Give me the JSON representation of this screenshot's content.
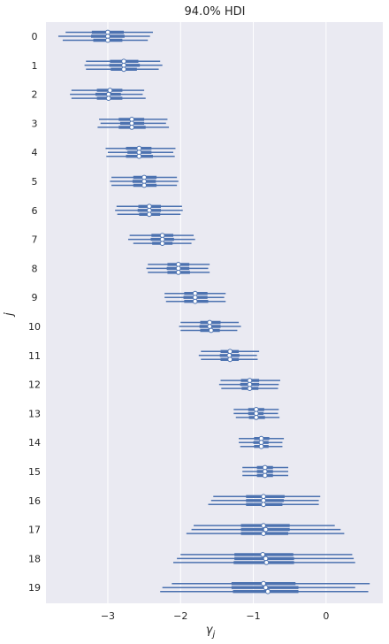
{
  "chart_data": {
    "type": "forest",
    "title": "94.0% HDI",
    "xlabel": "γ_j",
    "xlabel_main": "γ",
    "xlabel_sub": "j",
    "ylabel": "j",
    "xlim": [
      -3.85,
      0.78
    ],
    "x_ticks": [
      -3,
      -2,
      -1,
      0
    ],
    "x_tick_labels": [
      "−3",
      "−2",
      "−1",
      "0"
    ],
    "grid": true,
    "background_color": "#eaeaf2",
    "line_color": "#4c72b0",
    "groups": [
      {
        "label": "0",
        "chains": [
          {
            "hdi": [
              -3.58,
              -2.38
            ],
            "iqr": [
              -3.22,
              -2.78
            ],
            "median": -3.0
          },
          {
            "hdi": [
              -3.68,
              -2.42
            ],
            "iqr": [
              -3.23,
              -2.77
            ],
            "median": -3.0
          },
          {
            "hdi": [
              -3.62,
              -2.45
            ],
            "iqr": [
              -3.2,
              -2.8
            ],
            "median": -3.0
          }
        ]
      },
      {
        "label": "1",
        "chains": [
          {
            "hdi": [
              -3.3,
              -2.28
            ],
            "iqr": [
              -2.97,
              -2.58
            ],
            "median": -2.78
          },
          {
            "hdi": [
              -3.32,
              -2.25
            ],
            "iqr": [
              -2.98,
              -2.56
            ],
            "median": -2.78
          },
          {
            "hdi": [
              -3.3,
              -2.3
            ],
            "iqr": [
              -2.96,
              -2.6
            ],
            "median": -2.78
          }
        ]
      },
      {
        "label": "2",
        "chains": [
          {
            "hdi": [
              -3.5,
              -2.5
            ],
            "iqr": [
              -3.15,
              -2.8
            ],
            "median": -2.97
          },
          {
            "hdi": [
              -3.52,
              -2.52
            ],
            "iqr": [
              -3.17,
              -2.82
            ],
            "median": -2.99
          },
          {
            "hdi": [
              -3.5,
              -2.48
            ],
            "iqr": [
              -3.15,
              -2.8
            ],
            "median": -2.99
          }
        ]
      },
      {
        "label": "3",
        "chains": [
          {
            "hdi": [
              -3.12,
              -2.18
            ],
            "iqr": [
              -2.85,
              -2.5
            ],
            "median": -2.67
          },
          {
            "hdi": [
              -3.1,
              -2.2
            ],
            "iqr": [
              -2.83,
              -2.5
            ],
            "median": -2.67
          },
          {
            "hdi": [
              -3.14,
              -2.16
            ],
            "iqr": [
              -2.85,
              -2.48
            ],
            "median": -2.67
          }
        ]
      },
      {
        "label": "4",
        "chains": [
          {
            "hdi": [
              -3.03,
              -2.07
            ],
            "iqr": [
              -2.75,
              -2.4
            ],
            "median": -2.57
          },
          {
            "hdi": [
              -3.0,
              -2.1
            ],
            "iqr": [
              -2.73,
              -2.4
            ],
            "median": -2.57
          },
          {
            "hdi": [
              -3.02,
              -2.08
            ],
            "iqr": [
              -2.75,
              -2.38
            ],
            "median": -2.57
          }
        ]
      },
      {
        "label": "5",
        "chains": [
          {
            "hdi": [
              -2.95,
              -2.05
            ],
            "iqr": [
              -2.65,
              -2.33
            ],
            "median": -2.5
          },
          {
            "hdi": [
              -2.97,
              -2.03
            ],
            "iqr": [
              -2.66,
              -2.34
            ],
            "median": -2.5
          },
          {
            "hdi": [
              -2.95,
              -2.05
            ],
            "iqr": [
              -2.65,
              -2.33
            ],
            "median": -2.5
          }
        ]
      },
      {
        "label": "6",
        "chains": [
          {
            "hdi": [
              -2.88,
              -1.98
            ],
            "iqr": [
              -2.58,
              -2.27
            ],
            "median": -2.43
          },
          {
            "hdi": [
              -2.9,
              -1.97
            ],
            "iqr": [
              -2.59,
              -2.27
            ],
            "median": -2.43
          },
          {
            "hdi": [
              -2.87,
              -2.0
            ],
            "iqr": [
              -2.57,
              -2.28
            ],
            "median": -2.43
          }
        ]
      },
      {
        "label": "7",
        "chains": [
          {
            "hdi": [
              -2.7,
              -1.82
            ],
            "iqr": [
              -2.4,
              -2.1
            ],
            "median": -2.25
          },
          {
            "hdi": [
              -2.72,
              -1.8
            ],
            "iqr": [
              -2.41,
              -2.09
            ],
            "median": -2.25
          },
          {
            "hdi": [
              -2.65,
              -1.85
            ],
            "iqr": [
              -2.39,
              -2.11
            ],
            "median": -2.25
          }
        ]
      },
      {
        "label": "8",
        "chains": [
          {
            "hdi": [
              -2.45,
              -1.6
            ],
            "iqr": [
              -2.18,
              -1.88
            ],
            "median": -2.03
          },
          {
            "hdi": [
              -2.47,
              -1.62
            ],
            "iqr": [
              -2.19,
              -1.88
            ],
            "median": -2.03
          },
          {
            "hdi": [
              -2.45,
              -1.6
            ],
            "iqr": [
              -2.18,
              -1.87
            ],
            "median": -2.03
          }
        ]
      },
      {
        "label": "9",
        "chains": [
          {
            "hdi": [
              -2.22,
              -1.38
            ],
            "iqr": [
              -1.95,
              -1.63
            ],
            "median": -1.8
          },
          {
            "hdi": [
              -2.22,
              -1.4
            ],
            "iqr": [
              -1.96,
              -1.63
            ],
            "median": -1.8
          },
          {
            "hdi": [
              -2.2,
              -1.38
            ],
            "iqr": [
              -1.95,
              -1.62
            ],
            "median": -1.8
          }
        ]
      },
      {
        "label": "10",
        "chains": [
          {
            "hdi": [
              -2.0,
              -1.2
            ],
            "iqr": [
              -1.73,
              -1.45
            ],
            "median": -1.6
          },
          {
            "hdi": [
              -2.02,
              -1.17
            ],
            "iqr": [
              -1.74,
              -1.45
            ],
            "median": -1.6
          },
          {
            "hdi": [
              -2.0,
              -1.22
            ],
            "iqr": [
              -1.73,
              -1.46
            ],
            "median": -1.58
          }
        ]
      },
      {
        "label": "11",
        "chains": [
          {
            "hdi": [
              -1.72,
              -0.92
            ],
            "iqr": [
              -1.45,
              -1.2
            ],
            "median": -1.32
          },
          {
            "hdi": [
              -1.75,
              -0.95
            ],
            "iqr": [
              -1.46,
              -1.19
            ],
            "median": -1.33
          },
          {
            "hdi": [
              -1.72,
              -0.94
            ],
            "iqr": [
              -1.45,
              -1.2
            ],
            "median": -1.32
          }
        ]
      },
      {
        "label": "12",
        "chains": [
          {
            "hdi": [
              -1.45,
              -0.63
            ],
            "iqr": [
              -1.17,
              -0.92
            ],
            "median": -1.05
          },
          {
            "hdi": [
              -1.47,
              -0.65
            ],
            "iqr": [
              -1.18,
              -0.92
            ],
            "median": -1.05
          },
          {
            "hdi": [
              -1.44,
              -0.66
            ],
            "iqr": [
              -1.16,
              -0.93
            ],
            "median": -1.05
          }
        ]
      },
      {
        "label": "13",
        "chains": [
          {
            "hdi": [
              -1.27,
              -0.65
            ],
            "iqr": [
              -1.07,
              -0.85
            ],
            "median": -0.96
          },
          {
            "hdi": [
              -1.27,
              -0.66
            ],
            "iqr": [
              -1.07,
              -0.86
            ],
            "median": -0.96
          },
          {
            "hdi": [
              -1.24,
              -0.64
            ],
            "iqr": [
              -1.06,
              -0.84
            ],
            "median": -0.96
          }
        ]
      },
      {
        "label": "14",
        "chains": [
          {
            "hdi": [
              -1.2,
              -0.58
            ],
            "iqr": [
              -0.99,
              -0.78
            ],
            "median": -0.89
          },
          {
            "hdi": [
              -1.2,
              -0.6
            ],
            "iqr": [
              -1.0,
              -0.79
            ],
            "median": -0.89
          },
          {
            "hdi": [
              -1.18,
              -0.6
            ],
            "iqr": [
              -0.99,
              -0.79
            ],
            "median": -0.89
          }
        ]
      },
      {
        "label": "15",
        "chains": [
          {
            "hdi": [
              -1.15,
              -0.52
            ],
            "iqr": [
              -0.95,
              -0.73
            ],
            "median": -0.84
          },
          {
            "hdi": [
              -1.15,
              -0.52
            ],
            "iqr": [
              -0.95,
              -0.73
            ],
            "median": -0.84
          },
          {
            "hdi": [
              -1.15,
              -0.52
            ],
            "iqr": [
              -0.95,
              -0.73
            ],
            "median": -0.84
          }
        ]
      },
      {
        "label": "16",
        "chains": [
          {
            "hdi": [
              -1.55,
              -0.08
            ],
            "iqr": [
              -1.1,
              -0.57
            ],
            "median": -0.86
          },
          {
            "hdi": [
              -1.58,
              -0.1
            ],
            "iqr": [
              -1.1,
              -0.58
            ],
            "median": -0.86
          },
          {
            "hdi": [
              -1.62,
              -0.1
            ],
            "iqr": [
              -1.1,
              -0.6
            ],
            "median": -0.86
          }
        ]
      },
      {
        "label": "17",
        "chains": [
          {
            "hdi": [
              -1.82,
              0.12
            ],
            "iqr": [
              -1.17,
              -0.5
            ],
            "median": -0.86
          },
          {
            "hdi": [
              -1.85,
              0.2
            ],
            "iqr": [
              -1.17,
              -0.5
            ],
            "median": -0.83
          },
          {
            "hdi": [
              -1.92,
              0.25
            ],
            "iqr": [
              -1.17,
              -0.52
            ],
            "median": -0.86
          }
        ]
      },
      {
        "label": "18",
        "chains": [
          {
            "hdi": [
              -2.0,
              0.36
            ],
            "iqr": [
              -1.26,
              -0.45
            ],
            "median": -0.87
          },
          {
            "hdi": [
              -2.05,
              0.38
            ],
            "iqr": [
              -1.26,
              -0.44
            ],
            "median": -0.83
          },
          {
            "hdi": [
              -2.1,
              0.4
            ],
            "iqr": [
              -1.27,
              -0.44
            ],
            "median": -0.82
          }
        ]
      },
      {
        "label": "19",
        "chains": [
          {
            "hdi": [
              -2.12,
              0.6
            ],
            "iqr": [
              -1.3,
              -0.42
            ],
            "median": -0.86
          },
          {
            "hdi": [
              -2.25,
              0.4
            ],
            "iqr": [
              -1.3,
              -0.38
            ],
            "median": -0.83
          },
          {
            "hdi": [
              -2.28,
              0.58
            ],
            "iqr": [
              -1.28,
              -0.38
            ],
            "median": -0.8
          }
        ]
      }
    ]
  }
}
